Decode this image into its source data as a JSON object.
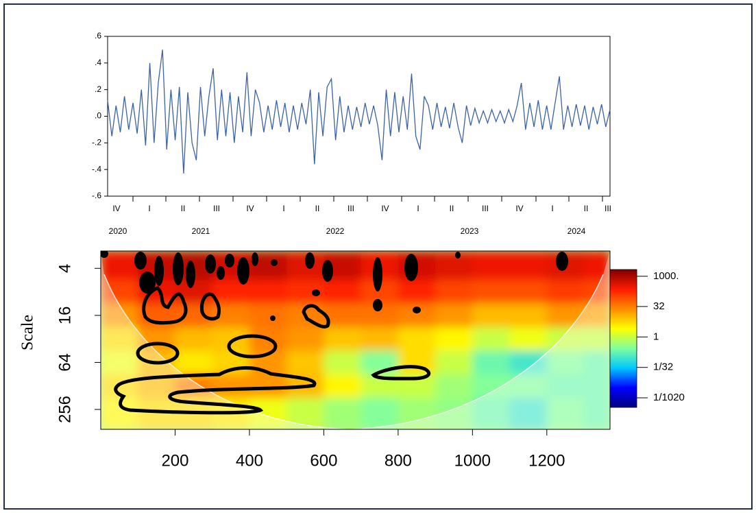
{
  "chart_data": [
    {
      "type": "line",
      "color": "#3a62a6",
      "values": [
        0.12,
        -0.15,
        0.08,
        -0.12,
        0.15,
        -0.1,
        0.1,
        -0.13,
        0.2,
        -0.22,
        0.4,
        -0.2,
        0.25,
        0.5,
        -0.25,
        0.2,
        -0.18,
        0.22,
        -0.43,
        0.18,
        -0.2,
        -0.33,
        0.22,
        -0.15,
        0.15,
        0.36,
        -0.18,
        0.2,
        -0.15,
        0.18,
        -0.2,
        0.15,
        -0.12,
        0.33,
        -0.15,
        0.2,
        0.1,
        -0.12,
        0.08,
        -0.1,
        0.12,
        -0.08,
        0.1,
        -0.12,
        0.08,
        -0.1,
        0.1,
        -0.06,
        0.2,
        -0.36,
        0.18,
        -0.15,
        0.22,
        0.28,
        -0.18,
        0.15,
        -0.12,
        0.08,
        -0.1,
        0.07,
        -0.08,
        0.1,
        -0.06,
        0.08,
        -0.07,
        -0.33,
        0.2,
        -0.15,
        0.18,
        -0.12,
        0.15,
        -0.1,
        0.32,
        -0.15,
        -0.25,
        0.15,
        0.08,
        -0.1,
        0.1,
        -0.08,
        0.07,
        -0.09,
        0.1,
        -0.08,
        -0.2,
        0.08,
        -0.07,
        0.06,
        -0.05,
        0.04,
        -0.05,
        0.05,
        -0.04,
        0.04,
        -0.05,
        0.05,
        -0.04,
        0.08,
        0.25,
        -0.1,
        0.1,
        -0.08,
        0.12,
        -0.1,
        0.08,
        -0.1,
        0.1,
        0.3,
        -0.1,
        0.08,
        -0.08,
        0.09,
        -0.07,
        0.08,
        -0.1,
        0.07,
        -0.06,
        0.09,
        -0.08,
        0.05
      ],
      "ylim": [
        -0.6,
        0.6
      ],
      "yticks": [
        {
          "value": -0.6,
          "label": "-.6"
        },
        {
          "value": -0.4,
          "label": "-.4"
        },
        {
          "value": -0.2,
          "label": "-.2"
        },
        {
          "value": 0,
          "label": ".0"
        },
        {
          "value": 0.2,
          "label": ".2"
        },
        {
          "value": 0.4,
          "label": ".4"
        },
        {
          "value": 0.6,
          "label": ".6"
        }
      ],
      "quarter_labels": [
        "IV",
        "I",
        "II",
        "III",
        "IV",
        "I",
        "II",
        "III",
        "IV",
        "I",
        "II",
        "III",
        "IV",
        "I",
        "II",
        "III"
      ],
      "year_labels": [
        "2020",
        "2021",
        "2022",
        "2023",
        "2024"
      ]
    },
    {
      "type": "heatmap",
      "y_label": "Scale",
      "xlim": [
        0,
        1370
      ],
      "xticks": [
        200,
        400,
        600,
        800,
        1000,
        1200
      ],
      "ylim": [
        2.4,
        460
      ],
      "log_y": true,
      "yticks": [
        4,
        16,
        64,
        256
      ],
      "x": [
        50,
        150,
        250,
        350,
        450,
        550,
        650,
        750,
        850,
        950,
        1050,
        1150,
        1250,
        1350
      ],
      "y": [
        4,
        8,
        16,
        32,
        64,
        128,
        256
      ],
      "z": [
        [
          300,
          600,
          800,
          500,
          700,
          400,
          600,
          300,
          500,
          400,
          300,
          300,
          400,
          300
        ],
        [
          100,
          300,
          400,
          200,
          200,
          150,
          200,
          100,
          200,
          100,
          80,
          80,
          120,
          100
        ],
        [
          20,
          60,
          50,
          30,
          40,
          30,
          40,
          40,
          30,
          20,
          10,
          10,
          20,
          15
        ],
        [
          5,
          20,
          10,
          8,
          30,
          20,
          8,
          10,
          5,
          3,
          1,
          2,
          1,
          1
        ],
        [
          2,
          10,
          4,
          6,
          20,
          8,
          1,
          0.3,
          5,
          1,
          0.2,
          0.1,
          0.3,
          0.2
        ],
        [
          5,
          10,
          30,
          20,
          20,
          10,
          3,
          1,
          1,
          0.5,
          0.3,
          0.3,
          0.2,
          0.2
        ],
        [
          3,
          5,
          5,
          4,
          2,
          1,
          0.5,
          0.3,
          0.5,
          0.4,
          0.2,
          0.1,
          0.3,
          0.2
        ]
      ],
      "clim": [
        0.00033,
        2150
      ],
      "cticks": [
        {
          "value": 1000,
          "label": "1000."
        },
        32,
        1,
        {
          "value": 0.03125,
          "label": "1/32"
        },
        {
          "value": 0.00098,
          "label": "1/1020"
        }
      ],
      "colormap": [
        "#00007f",
        "#0000ff",
        "#00c8ff",
        "#7fffa0",
        "#ffff00",
        "#ff8c00",
        "#ff1a00",
        "#7f0000"
      ]
    }
  ]
}
